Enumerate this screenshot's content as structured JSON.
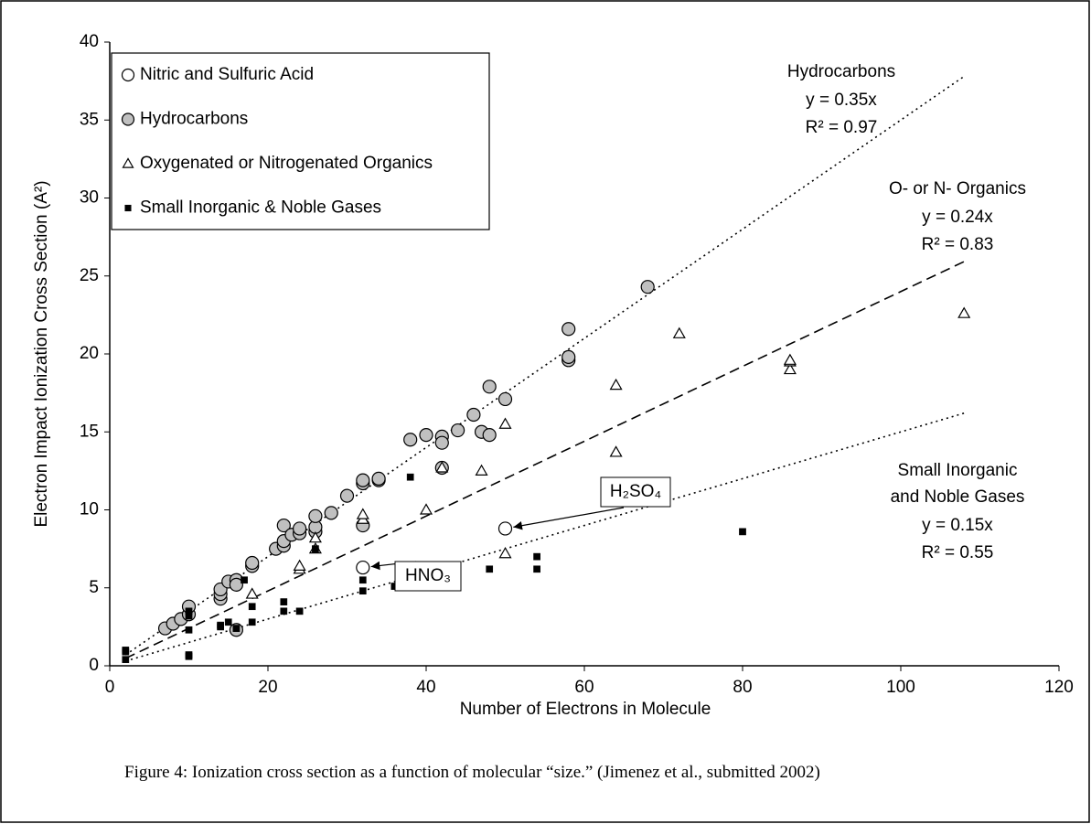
{
  "chart_data": {
    "type": "scatter",
    "xlabel": "Number of Electrons in Molecule",
    "ylabel": "Electron Impact Ionization Cross Section (A²)",
    "xlim": [
      0,
      120
    ],
    "xticks": [
      0,
      20,
      40,
      60,
      80,
      100,
      120
    ],
    "ylim": [
      0,
      40
    ],
    "yticks": [
      0,
      5,
      10,
      15,
      20,
      25,
      30,
      35,
      40
    ],
    "legend": "upper left",
    "series": [
      {
        "name": "Nitric and Sulfuric Acid",
        "marker": "circle",
        "color": "#ffffff",
        "x": [
          32,
          50
        ],
        "values": [
          6.3,
          8.8
        ]
      },
      {
        "name": "Hydrocarbons",
        "marker": "circle",
        "color": "#c0c0c0",
        "x": [
          7,
          8,
          9,
          10,
          10,
          14,
          14,
          14,
          15,
          16,
          16,
          16,
          18,
          18,
          21,
          22,
          22,
          22,
          23,
          24,
          24,
          26,
          26,
          26,
          28,
          30,
          32,
          32,
          32,
          34,
          34,
          38,
          40,
          42,
          42,
          42,
          44,
          46,
          47,
          48,
          48,
          50,
          58,
          58,
          58,
          68
        ],
        "values": [
          2.4,
          2.7,
          3.0,
          3.3,
          3.8,
          4.3,
          4.6,
          4.9,
          5.4,
          5.5,
          5.2,
          2.3,
          6.4,
          6.6,
          7.5,
          7.7,
          8.0,
          9.0,
          8.4,
          8.5,
          8.8,
          8.6,
          8.9,
          9.6,
          9.8,
          10.9,
          9.0,
          11.7,
          11.9,
          11.9,
          12.0,
          14.5,
          14.8,
          14.7,
          14.3,
          12.7,
          15.1,
          16.1,
          15.0,
          14.8,
          17.9,
          17.1,
          19.6,
          19.8,
          21.6,
          24.3
        ]
      },
      {
        "name": "Oxygenated or Nitrogenated Organics",
        "marker": "triangle",
        "color": "#ffffff",
        "x": [
          18,
          24,
          24,
          26,
          26,
          32,
          32,
          40,
          42,
          47,
          50,
          50,
          64,
          64,
          72,
          86,
          86,
          86,
          108
        ],
        "values": [
          4.6,
          6.2,
          6.4,
          7.5,
          8.2,
          9.4,
          9.7,
          10.0,
          12.7,
          12.5,
          7.2,
          15.5,
          13.7,
          18.0,
          21.3,
          19.0,
          19.5,
          19.6,
          22.6
        ]
      },
      {
        "name": "Small Inorganic & Noble Gases",
        "marker": "square",
        "color": "#000000",
        "x": [
          2,
          2,
          2,
          10,
          10,
          10,
          10,
          10,
          14,
          14,
          15,
          16,
          17,
          18,
          18,
          22,
          22,
          24,
          26,
          32,
          32,
          36,
          38,
          48,
          54,
          54,
          80
        ],
        "values": [
          0.4,
          0.9,
          1.0,
          0.6,
          0.7,
          2.3,
          3.2,
          3.5,
          2.6,
          2.5,
          2.8,
          2.4,
          5.5,
          3.8,
          2.8,
          3.5,
          4.1,
          3.5,
          7.5,
          4.8,
          5.5,
          5.1,
          12.1,
          6.2,
          6.2,
          7.0,
          8.6
        ]
      }
    ],
    "trendlines": [
      {
        "lines": [
          "Hydrocarbons"
        ],
        "equation": "y = 0.35x",
        "r2": "R² = 0.97",
        "slope": 0.35,
        "x": [
          2,
          108
        ],
        "dash": "dotted"
      },
      {
        "lines": [
          "O- or N- Organics"
        ],
        "equation": "y = 0.24x",
        "r2": "R² = 0.83",
        "slope": 0.24,
        "x": [
          2,
          108
        ],
        "dash": "dashed"
      },
      {
        "lines": [
          "Small Inorganic",
          "and Noble Gases"
        ],
        "equation": "y = 0.15x",
        "r2": "R² = 0.55",
        "slope": 0.15,
        "x": [
          2,
          108
        ],
        "dash": "dotted"
      }
    ],
    "annotations": [
      {
        "text": "H₂SO₄",
        "series": 0,
        "point": 1
      },
      {
        "text": "HNO₃",
        "series": 0,
        "point": 0
      }
    ],
    "caption": "Figure 4: Ionization cross section as a function of molecular “size.”  (Jimenez et al., submitted 2002)"
  }
}
